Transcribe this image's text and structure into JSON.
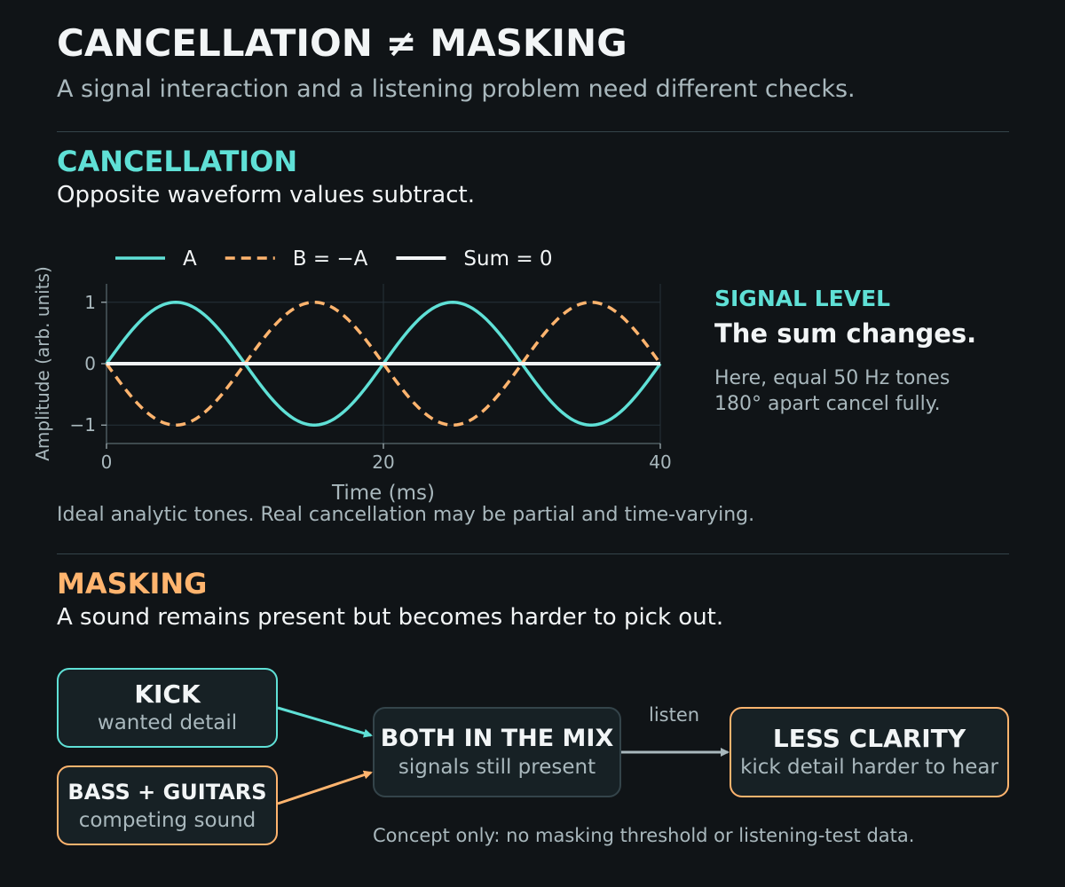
{
  "header": {
    "title": "CANCELLATION ≠ MASKING",
    "subtitle": "A signal interaction and a listening problem need different checks."
  },
  "cancellation": {
    "heading": "CANCELLATION",
    "description": "Opposite waveform values subtract.",
    "note": "Ideal analytic tones. Real cancellation may be partial and time-varying.",
    "side_heading": "SIGNAL LEVEL",
    "side_main": "The sum changes.",
    "side_text": "Here, equal 50 Hz tones 180° apart cancel fully."
  },
  "chart_data": {
    "type": "line",
    "xlabel": "Time (ms)",
    "ylabel": "Amplitude (arb. units)",
    "xlim": [
      0,
      40
    ],
    "ylim": [
      -1.3,
      1.3
    ],
    "xticks": [
      0,
      20,
      40
    ],
    "yticks": [
      1,
      0,
      -1
    ],
    "ytick_labels": [
      "1",
      "0",
      "−1"
    ],
    "grid": true,
    "legend_position": "top",
    "series": [
      {
        "name": "A",
        "function": "sin",
        "frequency_hz": 50,
        "amplitude": 1,
        "phase_deg": 0,
        "color": "#5fe0d6",
        "dashed": false
      },
      {
        "name": "B = −A",
        "function": "sin",
        "frequency_hz": 50,
        "amplitude": 1,
        "phase_deg": 180,
        "color": "#ffb46e",
        "dashed": true
      },
      {
        "name": "Sum = 0",
        "function": "sum",
        "frequency_hz": 50,
        "amplitude": 0,
        "phase_deg": 0,
        "color": "#f2f5f6",
        "dashed": false
      }
    ]
  },
  "masking": {
    "heading": "MASKING",
    "description": "A sound remains present but becomes harder to pick out.",
    "boxes": {
      "kick": {
        "title": "KICK",
        "subtitle": "wanted detail"
      },
      "bass": {
        "title": "BASS + GUITARS",
        "subtitle": "competing sound"
      },
      "mix": {
        "title": "BOTH IN THE MIX",
        "subtitle": "signals still present"
      },
      "clarity": {
        "title": "LESS CLARITY",
        "subtitle": "kick detail harder to hear"
      }
    },
    "arrow_label": "listen",
    "note": "Concept only: no masking threshold or listening-test data."
  },
  "colors": {
    "accent_cyan": "#5fe0d6",
    "accent_orange": "#ffb46e",
    "background": "#101417"
  }
}
